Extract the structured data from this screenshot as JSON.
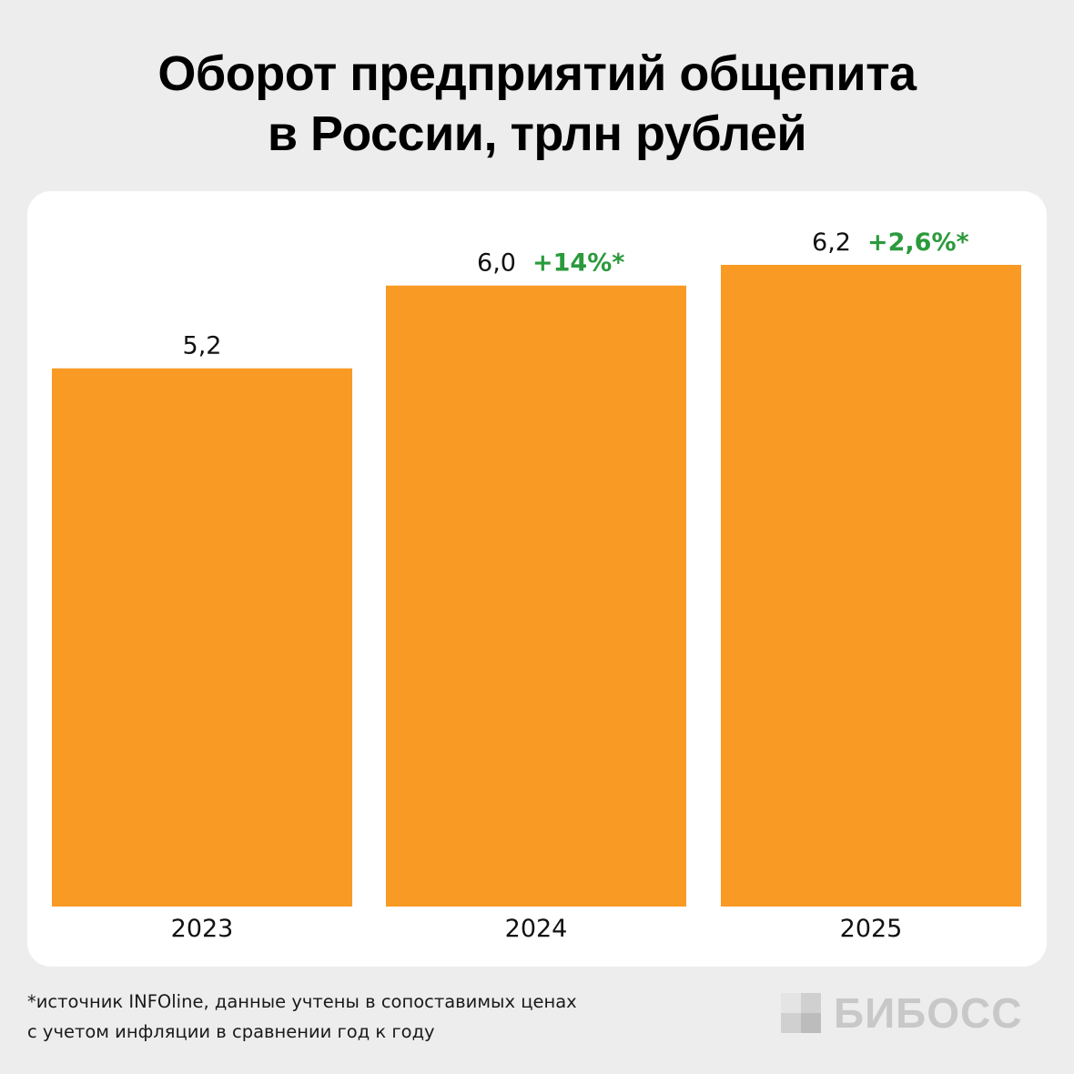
{
  "title_line1": "Оборот предприятий общепита",
  "title_line2": "в России, трлн рублей",
  "chart_data": {
    "type": "bar",
    "title": "Оборот предприятий общепита в России, трлн рублей",
    "categories": [
      "2023",
      "2024",
      "2025"
    ],
    "values": [
      5.2,
      6.0,
      6.2
    ],
    "value_labels": [
      "5,2",
      "6,0",
      "6,2"
    ],
    "change_labels": [
      "",
      "+14%*",
      "+2,6%*"
    ],
    "ylim": [
      0,
      6.2
    ],
    "grid": false,
    "bar_color": "#f99a24",
    "change_color": "#2b9a3c"
  },
  "footnote_line1": "*источник INFOline, данные учтены в сопоставимых ценах",
  "footnote_line2": "с учетом инфляции в сравнении год к году",
  "logo_text": "БИБОСС",
  "logo_icon": "bibos-square-logo-icon"
}
